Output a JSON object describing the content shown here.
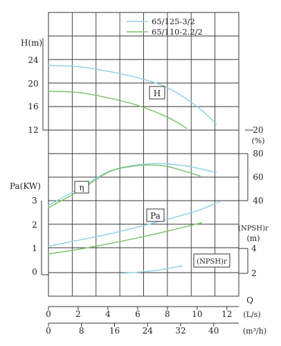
{
  "chart_data": {
    "type": "line",
    "legend": {
      "position": "top-right",
      "entries": [
        {
          "label": "65/125-3/2",
          "color": "#8fd3e8"
        },
        {
          "label": "65/110-2.2/2",
          "color": "#7cc36a"
        }
      ]
    },
    "head_panel": {
      "ylabel": "H(m)",
      "ticks": [
        "24",
        "20",
        "16",
        "12"
      ],
      "ylim": [
        12,
        24
      ],
      "tag": "H"
    },
    "power_panel": {
      "ylabel": "Pa(KW)",
      "ticks": [
        "3",
        "2",
        "1",
        "0"
      ],
      "ylim": [
        0,
        3
      ],
      "tag": "Pa"
    },
    "efficiency_axis": {
      "unit": "(%)",
      "ticks": [
        "20",
        "80",
        "60",
        "40"
      ],
      "ylim": [
        40,
        80
      ],
      "tag": "η"
    },
    "npsh_axis": {
      "label": "(NPSH)r",
      "unit": "(m)",
      "ticks": [
        "4",
        "2"
      ],
      "ylim": [
        2,
        4
      ],
      "tag": "(NPSH)r"
    },
    "x_axis_ls": {
      "label": "Q",
      "unit": "(L/s)",
      "ticks": [
        "0",
        "2",
        "4",
        "6",
        "8",
        "10",
        "12"
      ],
      "xlim": [
        0,
        12
      ]
    },
    "x_axis_m3h": {
      "unit": "(m³/h)",
      "ticks": [
        "0",
        "8",
        "16",
        "24",
        "32",
        "40"
      ]
    },
    "series": [
      {
        "name": "65/125-3/2",
        "color": "#8fd3e8",
        "head": {
          "x": [
            0,
            2,
            4,
            6,
            8,
            10,
            11.3
          ],
          "y": [
            23,
            22.8,
            22,
            20.9,
            19.2,
            16,
            13
          ]
        },
        "efficiency": {
          "x": [
            0,
            2,
            4,
            5.5,
            7,
            8,
            9.5,
            11.3
          ],
          "y": [
            36,
            50,
            64.5,
            69.5,
            71.5,
            71.3,
            69,
            64
          ]
        },
        "power": {
          "x": [
            0,
            2,
            4,
            6,
            8,
            10,
            11.5
          ],
          "y": [
            1.1,
            1.35,
            1.6,
            1.9,
            2.22,
            2.58,
            2.95
          ]
        },
        "npsh": {
          "x": [
            5,
            7,
            9
          ],
          "y": [
            2,
            2.2,
            2.6
          ]
        }
      },
      {
        "name": "65/110-2.2/2",
        "color": "#7cc36a",
        "head": {
          "x": [
            0,
            2,
            4,
            6,
            8,
            9.3
          ],
          "y": [
            18.6,
            18.4,
            17.5,
            16.2,
            14.2,
            12.3
          ]
        },
        "efficiency": {
          "x": [
            0,
            2,
            4,
            5.5,
            7,
            8.2,
            10.2
          ],
          "y": [
            34,
            48,
            64,
            69,
            70.3,
            68.5,
            61
          ]
        },
        "power": {
          "x": [
            0,
            2,
            4,
            6,
            8,
            10.3
          ],
          "y": [
            0.78,
            0.97,
            1.2,
            1.45,
            1.73,
            2.08
          ]
        }
      }
    ]
  }
}
